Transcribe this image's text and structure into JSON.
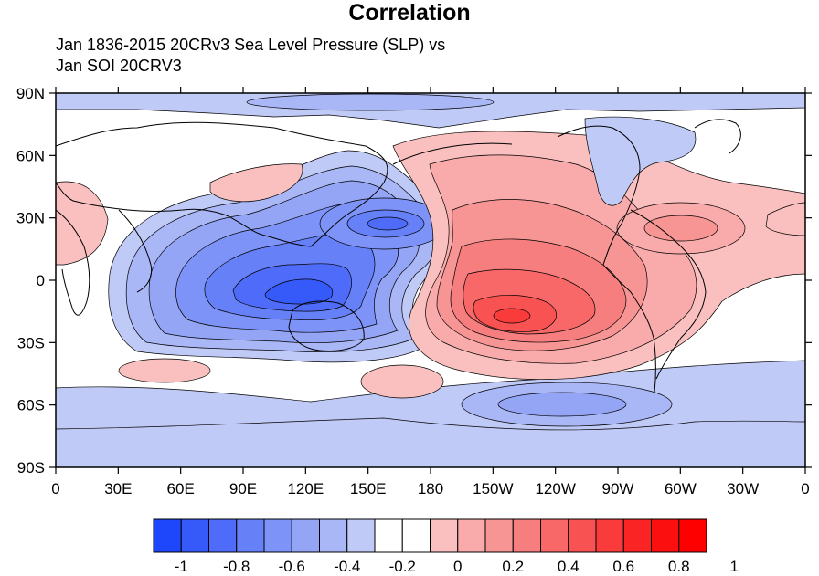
{
  "title": "Correlation",
  "subtitle": {
    "line1": "Jan 1836-2015 20CRv3 Sea Level Pressure (SLP) vs",
    "line2": "Jan SOI 20CRV3"
  },
  "map": {
    "projection": "cylindrical equidistant",
    "longitude_ticks": [
      "0",
      "30E",
      "60E",
      "90E",
      "120E",
      "150E",
      "180",
      "150W",
      "120W",
      "90W",
      "60W",
      "30W",
      "0"
    ],
    "latitude_ticks": [
      "90N",
      "60N",
      "30N",
      "0",
      "30S",
      "60S",
      "90S"
    ],
    "lon_range": [
      0,
      360
    ],
    "lat_range": [
      -90,
      90
    ],
    "features": [
      {
        "name": "Eastern/central Pacific positive correlation",
        "sign": "positive",
        "peak": 0.8,
        "center_lat": -17,
        "center_lon": 210
      },
      {
        "name": "Indo-Australian negative correlation",
        "sign": "negative",
        "peak": -0.8,
        "center_lat": -12,
        "center_lon": 135
      },
      {
        "name": "North Pacific negative center",
        "sign": "negative",
        "peak": -0.5,
        "center_lat": 27,
        "center_lon": 160
      },
      {
        "name": "Southern Ocean negative band",
        "sign": "negative",
        "peak": -0.4,
        "center_lat": -60,
        "center_lon": 225
      },
      {
        "name": "Arctic negative",
        "sign": "negative",
        "peak": -0.2,
        "center_lat": 85,
        "center_lon": 180
      }
    ]
  },
  "colorbar": {
    "labels": [
      "-1",
      "-0.8",
      "-0.6",
      "-0.4",
      "-0.2",
      "0",
      "0.2",
      "0.4",
      "0.6",
      "0.8",
      "1"
    ],
    "colors": [
      "#1e46fa",
      "#3659fa",
      "#4e6cf9",
      "#6680f8",
      "#7e93f7",
      "#94a5f6",
      "#aab7f6",
      "#c0caf7",
      "#ffffff",
      "#ffffff",
      "#fac0c0",
      "#f9aaaa",
      "#f79494",
      "#f77e7e",
      "#f86868",
      "#f95252",
      "#f93b3b",
      "#fa2424",
      "#fb0f0f",
      "#ff0000"
    ]
  }
}
